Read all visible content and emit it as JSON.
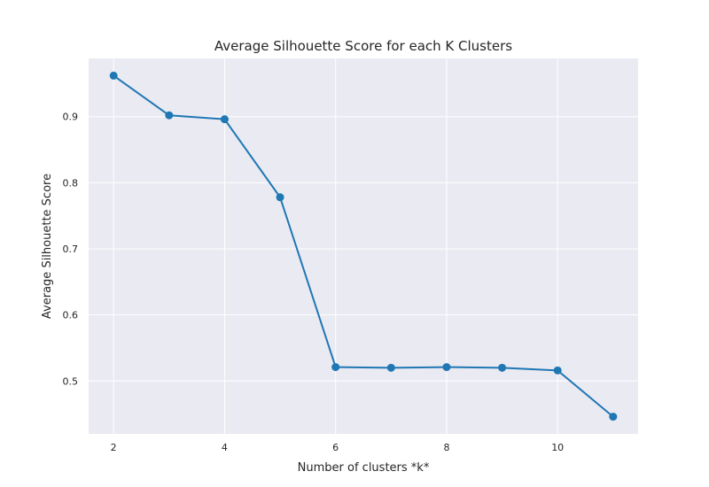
{
  "chart_data": {
    "type": "line",
    "title": "Average Silhouette Score for each K Clusters",
    "xlabel": "Number of clusters *k*",
    "ylabel": "Average Silhouette Score",
    "x": [
      2,
      3,
      4,
      5,
      6,
      7,
      8,
      9,
      10,
      11
    ],
    "series": [
      {
        "values": [
          0.962,
          0.902,
          0.896,
          0.778,
          0.521,
          0.52,
          0.521,
          0.52,
          0.516,
          0.446
        ]
      }
    ],
    "xlim": [
      1.55,
      11.45
    ],
    "ylim": [
      0.42,
      0.988
    ],
    "xticks": [
      2,
      4,
      6,
      8,
      10
    ],
    "yticks": [
      0.5,
      0.6,
      0.7,
      0.8,
      0.9
    ],
    "grid": true,
    "colors": {
      "line": "#1f77b4",
      "plot_background": "#eaeaf2",
      "grid": "#ffffff"
    }
  }
}
